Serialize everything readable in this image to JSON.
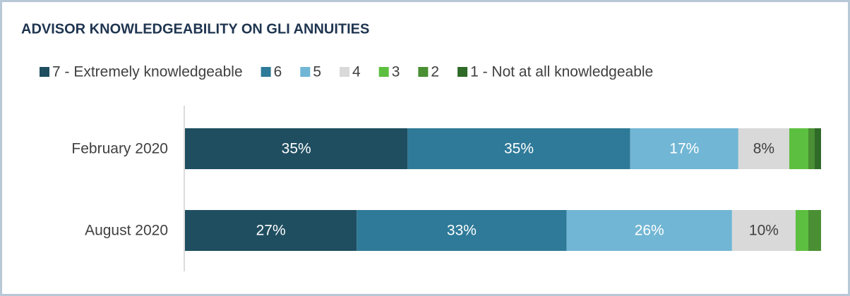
{
  "chart_data": {
    "type": "stacked-bar-horizontal",
    "title": "ADVISOR KNOWLEDGEABILITY ON GLI ANNUITIES",
    "categories": [
      "February 2020",
      "August 2020"
    ],
    "xlim": [
      0,
      100
    ],
    "series": [
      {
        "name": "7 - Extremely knowledgeable",
        "color": "#1f4e60",
        "values": [
          35,
          27
        ],
        "value_labels": [
          "35%",
          "27%"
        ]
      },
      {
        "name": "6",
        "color": "#2e7a98",
        "values": [
          35,
          33
        ],
        "value_labels": [
          "35%",
          "33%"
        ]
      },
      {
        "name": "5",
        "color": "#71b6d4",
        "values": [
          17,
          26
        ],
        "value_labels": [
          "17%",
          "26%"
        ]
      },
      {
        "name": "4",
        "color": "#d9d9d9",
        "values": [
          8,
          10
        ],
        "value_labels": [
          "8%",
          "10%"
        ]
      },
      {
        "name": "3",
        "color": "#5dbf3f",
        "values": [
          3,
          2
        ]
      },
      {
        "name": "2",
        "color": "#4a8f33",
        "values": [
          1,
          2
        ]
      },
      {
        "name": "1 - Not at all knowledgeable",
        "color": "#2f6a28",
        "values": [
          1,
          0
        ]
      }
    ]
  }
}
